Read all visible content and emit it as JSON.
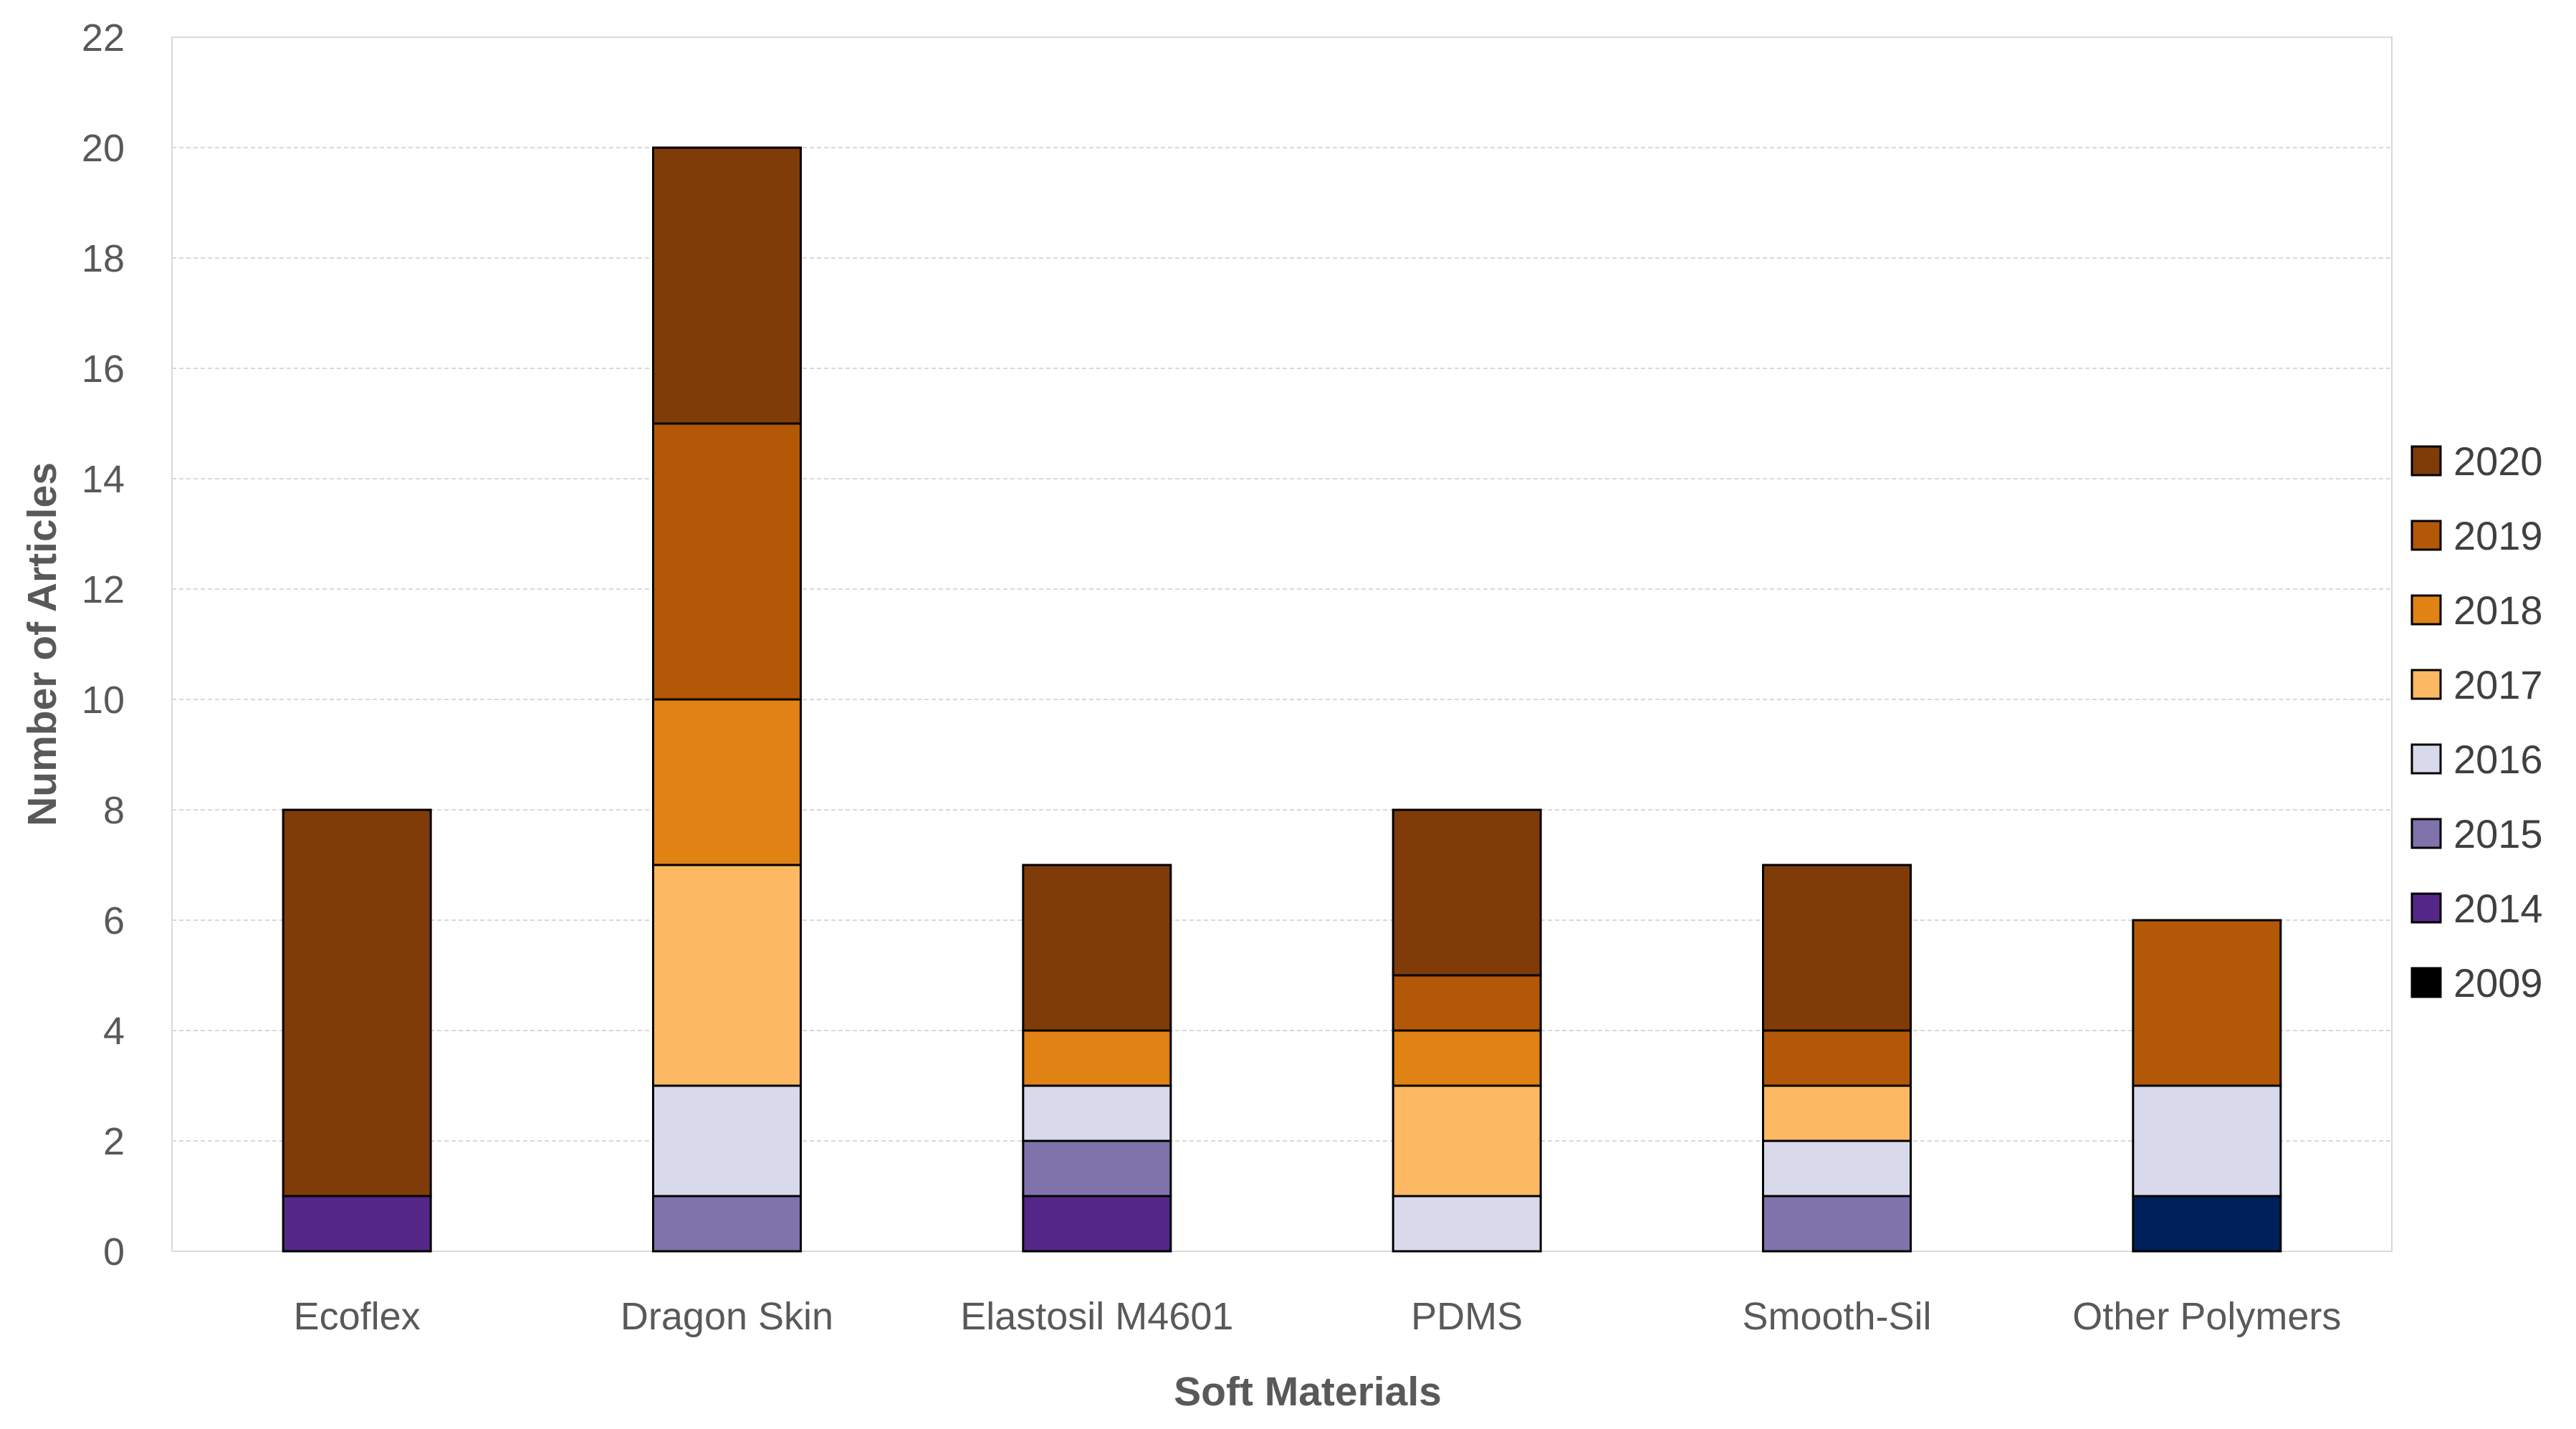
{
  "chart_data": {
    "type": "bar",
    "stacked": true,
    "title": "",
    "xlabel": "Soft Materials",
    "ylabel": "Number of Articles",
    "ylim": [
      0,
      22
    ],
    "yticks": [
      0,
      2,
      4,
      6,
      8,
      10,
      12,
      14,
      16,
      18,
      20,
      22
    ],
    "grid": true,
    "legend_position": "right",
    "categories": [
      "Ecoflex",
      "Dragon Skin",
      "Elastosil  M4601",
      "PDMS",
      "Smooth-Sil",
      "Other Polymers"
    ],
    "series": [
      {
        "name": "2009",
        "color": "#00205b",
        "values": [
          0,
          0,
          0,
          0,
          0,
          1
        ]
      },
      {
        "name": "2014",
        "color": "#542788",
        "values": [
          1,
          0,
          1,
          0,
          0,
          0
        ]
      },
      {
        "name": "2015",
        "color": "#8073ac",
        "values": [
          0,
          1,
          1,
          0,
          1,
          0
        ]
      },
      {
        "name": "2016",
        "color": "#d8daeb",
        "values": [
          0,
          2,
          1,
          1,
          1,
          2
        ]
      },
      {
        "name": "2017",
        "color": "#fdb863",
        "values": [
          0,
          4,
          0,
          2,
          1,
          0
        ]
      },
      {
        "name": "2018",
        "color": "#e08214",
        "values": [
          0,
          3,
          1,
          1,
          0,
          0
        ]
      },
      {
        "name": "2019",
        "color": "#b35806",
        "values": [
          0,
          5,
          0,
          1,
          1,
          3
        ]
      },
      {
        "name": "2020",
        "color": "#7f3b08",
        "values": [
          7,
          5,
          3,
          3,
          3,
          0
        ]
      }
    ],
    "legend_order": [
      "2020",
      "2019",
      "2018",
      "2017",
      "2016",
      "2015",
      "2014",
      "2009"
    ],
    "legend_swatch_colors": {
      "2009": "#000000"
    }
  }
}
